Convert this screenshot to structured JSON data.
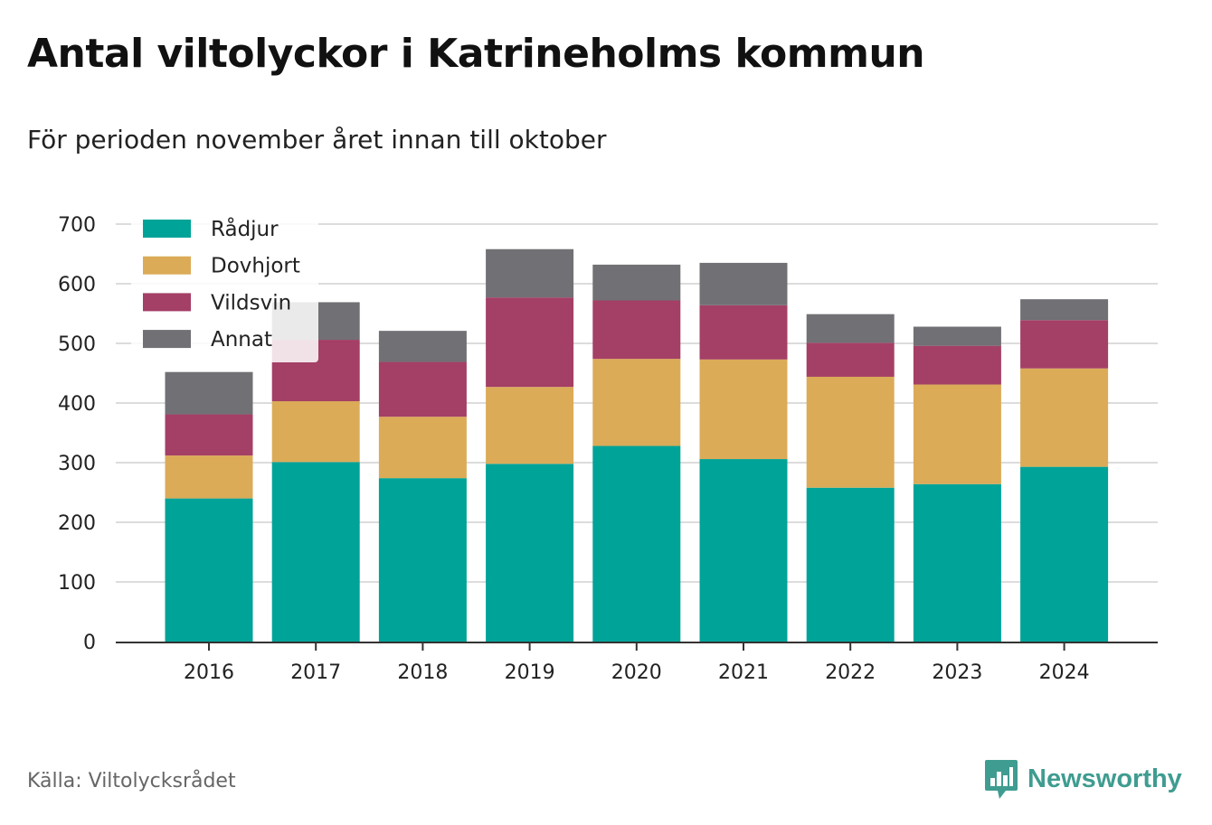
{
  "header": {
    "title": "Antal viltolyckor i Katrineholms kommun",
    "subtitle": "För perioden november året innan till oktober"
  },
  "footer": {
    "source": "Källa: Viltolycksrådet",
    "brand": "Newsworthy",
    "brand_icon": "bar-chart-speech-bubble-icon",
    "brand_color": "#3f9c90"
  },
  "chart_data": {
    "type": "bar",
    "stacked": true,
    "title": "Antal viltolyckor i Katrineholms kommun",
    "subtitle": "För perioden november året innan till oktober",
    "xlabel": "",
    "ylabel": "",
    "categories": [
      "2016",
      "2017",
      "2018",
      "2019",
      "2020",
      "2021",
      "2022",
      "2023",
      "2024"
    ],
    "ylim": [
      0,
      700
    ],
    "yticks": [
      0,
      100,
      200,
      300,
      400,
      500,
      600,
      700
    ],
    "grid": true,
    "legend_position": "top-left",
    "series": [
      {
        "name": "Rådjur",
        "color": "#00a398",
        "values": [
          240,
          301,
          274,
          298,
          328,
          306,
          258,
          264,
          293
        ]
      },
      {
        "name": "Dovhjort",
        "color": "#dbab58",
        "values": [
          72,
          102,
          103,
          129,
          146,
          167,
          186,
          167,
          165
        ]
      },
      {
        "name": "Vildsvin",
        "color": "#a43f65",
        "values": [
          69,
          103,
          92,
          150,
          98,
          91,
          57,
          65,
          81
        ]
      },
      {
        "name": "Annat",
        "color": "#707075",
        "values": [
          71,
          63,
          52,
          81,
          60,
          71,
          48,
          32,
          35
        ]
      }
    ]
  }
}
